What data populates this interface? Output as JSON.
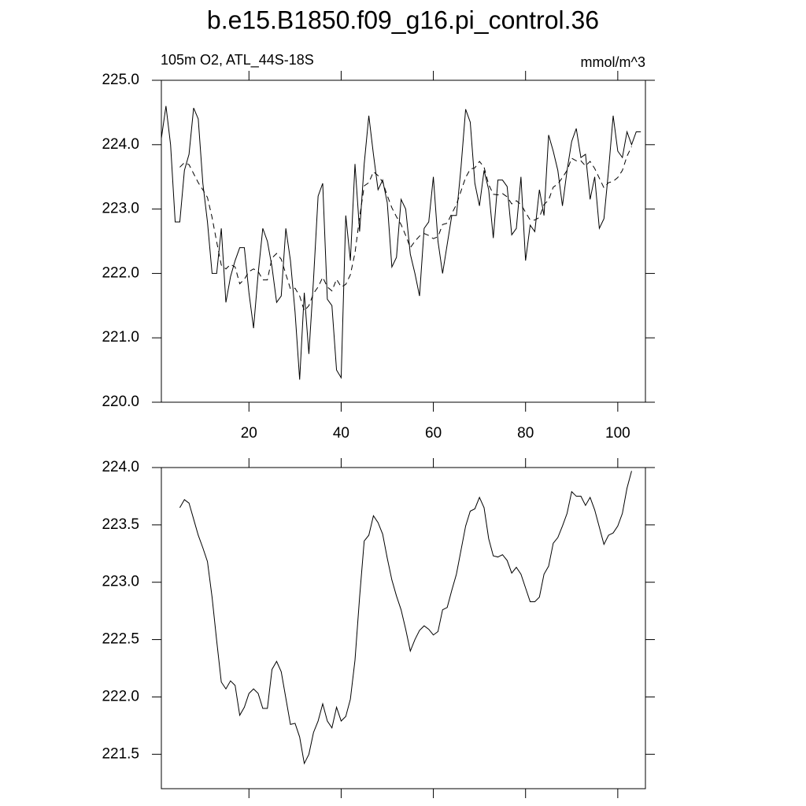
{
  "chart_data": [
    {
      "type": "line",
      "title": "b.e15.B1850.f09_g16.pi_control.36",
      "subtitle_left": "105m O2, ATL_44S-18S",
      "subtitle_right": "mmol/m^3",
      "xlim": [
        1,
        106
      ],
      "xticks": [
        20,
        40,
        60,
        80,
        100
      ],
      "xtick_labels": true,
      "ylim": [
        220,
        225
      ],
      "yticks": [
        {
          "value": 220,
          "label": "220.0"
        },
        {
          "value": 221,
          "label": "221.0"
        },
        {
          "value": 222,
          "label": "222.0"
        },
        {
          "value": 223,
          "label": "223.0"
        },
        {
          "value": 224,
          "label": "224.0"
        },
        {
          "value": 225,
          "label": "225.0"
        }
      ],
      "series": [
        {
          "color": "#000000",
          "style": "solid",
          "x": [
            1,
            2,
            3,
            4,
            5,
            6,
            7,
            8,
            9,
            10,
            11,
            12,
            13,
            14,
            15,
            16,
            17,
            18,
            19,
            20,
            21,
            22,
            23,
            24,
            25,
            26,
            27,
            28,
            29,
            30,
            31,
            32,
            33,
            34,
            35,
            36,
            37,
            38,
            39,
            40,
            41,
            42,
            43,
            44,
            45,
            46,
            47,
            48,
            49,
            50,
            51,
            52,
            53,
            54,
            55,
            56,
            57,
            58,
            59,
            60,
            61,
            62,
            63,
            64,
            65,
            66,
            67,
            68,
            69,
            70,
            71,
            72,
            73,
            74,
            75,
            76,
            77,
            78,
            79,
            80,
            81,
            82,
            83,
            84,
            85,
            86,
            87,
            88,
            89,
            90,
            91,
            92,
            93,
            94,
            95,
            96,
            97,
            98,
            99,
            100,
            101,
            102,
            103,
            104,
            105
          ],
          "values": [
            224.1,
            224.6,
            224.0,
            222.8,
            222.8,
            223.6,
            223.85,
            224.57,
            224.4,
            223.4,
            222.8,
            222.0,
            222.0,
            222.7,
            221.55,
            221.95,
            222.2,
            222.4,
            222.4,
            221.7,
            221.15,
            222.0,
            222.7,
            222.5,
            222.1,
            221.55,
            221.65,
            222.7,
            222.2,
            221.4,
            220.35,
            221.7,
            220.75,
            221.9,
            223.2,
            223.4,
            221.6,
            221.5,
            220.5,
            220.38,
            222.9,
            222.2,
            223.7,
            222.65,
            223.7,
            224.45,
            223.85,
            223.3,
            223.45,
            223.1,
            222.1,
            222.25,
            223.15,
            223.0,
            222.3,
            222.0,
            221.65,
            222.7,
            222.8,
            223.5,
            222.5,
            222.0,
            222.45,
            222.9,
            222.9,
            223.65,
            224.55,
            224.35,
            223.4,
            223.05,
            223.6,
            223.3,
            222.55,
            223.45,
            223.45,
            223.35,
            222.6,
            222.7,
            223.5,
            222.2,
            222.75,
            222.65,
            223.3,
            222.9,
            224.15,
            223.9,
            223.6,
            223.05,
            223.6,
            224.05,
            224.25,
            223.8,
            223.85,
            223.15,
            223.5,
            222.7,
            222.85,
            223.6,
            224.45,
            223.9,
            223.8,
            224.2,
            224.0,
            224.2,
            224.2
          ]
        },
        {
          "color": "#000000",
          "style": "dashed",
          "x": [
            5,
            6,
            7,
            8,
            9,
            10,
            11,
            12,
            13,
            14,
            15,
            16,
            17,
            18,
            19,
            20,
            21,
            22,
            23,
            24,
            25,
            26,
            27,
            28,
            29,
            30,
            31,
            32,
            33,
            34,
            35,
            36,
            37,
            38,
            39,
            40,
            41,
            42,
            43,
            44,
            45,
            46,
            47,
            48,
            49,
            50,
            51,
            52,
            53,
            54,
            55,
            56,
            57,
            58,
            59,
            60,
            61,
            62,
            63,
            64,
            65,
            66,
            67,
            68,
            69,
            70,
            71,
            72,
            73,
            74,
            75,
            76,
            77,
            78,
            79,
            80,
            81,
            82,
            83,
            84,
            85,
            86,
            87,
            88,
            89,
            90,
            91,
            92,
            93,
            94,
            95,
            96,
            97,
            98,
            99,
            100,
            101,
            102,
            103
          ],
          "values": [
            223.65,
            223.72,
            223.69,
            223.55,
            223.41,
            223.3,
            223.18,
            222.87,
            222.49,
            222.13,
            222.07,
            222.14,
            222.1,
            221.84,
            221.91,
            222.03,
            222.07,
            222.03,
            221.9,
            221.9,
            222.24,
            222.31,
            222.22,
            221.99,
            221.76,
            221.77,
            221.65,
            221.42,
            221.5,
            221.69,
            221.79,
            221.94,
            221.79,
            221.73,
            221.91,
            221.79,
            221.83,
            221.98,
            222.32,
            222.87,
            223.36,
            223.41,
            223.58,
            223.52,
            223.42,
            223.21,
            223.02,
            222.88,
            222.76,
            222.59,
            222.4,
            222.5,
            222.58,
            222.62,
            222.59,
            222.54,
            222.57,
            222.76,
            222.78,
            222.93,
            223.07,
            223.28,
            223.49,
            223.62,
            223.64,
            223.74,
            223.65,
            223.38,
            223.23,
            223.22,
            223.24,
            223.19,
            223.08,
            223.13,
            223.07,
            222.95,
            222.83,
            222.83,
            222.87,
            223.07,
            223.14,
            223.34,
            223.39,
            223.49,
            223.6,
            223.79,
            223.75,
            223.75,
            223.67,
            223.74,
            223.63,
            223.48,
            223.33,
            223.41,
            223.43,
            223.49,
            223.6,
            223.82,
            223.97
          ]
        }
      ]
    },
    {
      "type": "line",
      "xlim": [
        1,
        106
      ],
      "xticks": [
        20,
        40,
        60,
        80,
        100
      ],
      "xtick_labels": false,
      "ylim": [
        221.2,
        224
      ],
      "yticks": [
        {
          "value": 221.5,
          "label": "221.5"
        },
        {
          "value": 222,
          "label": "222.0"
        },
        {
          "value": 222.5,
          "label": "222.5"
        },
        {
          "value": 223,
          "label": "223.0"
        },
        {
          "value": 223.5,
          "label": "223.5"
        },
        {
          "value": 224,
          "label": "224.0"
        }
      ],
      "series": [
        {
          "color": "#000000",
          "style": "solid",
          "x": [
            5,
            6,
            7,
            8,
            9,
            10,
            11,
            12,
            13,
            14,
            15,
            16,
            17,
            18,
            19,
            20,
            21,
            22,
            23,
            24,
            25,
            26,
            27,
            28,
            29,
            30,
            31,
            32,
            33,
            34,
            35,
            36,
            37,
            38,
            39,
            40,
            41,
            42,
            43,
            44,
            45,
            46,
            47,
            48,
            49,
            50,
            51,
            52,
            53,
            54,
            55,
            56,
            57,
            58,
            59,
            60,
            61,
            62,
            63,
            64,
            65,
            66,
            67,
            68,
            69,
            70,
            71,
            72,
            73,
            74,
            75,
            76,
            77,
            78,
            79,
            80,
            81,
            82,
            83,
            84,
            85,
            86,
            87,
            88,
            89,
            90,
            91,
            92,
            93,
            94,
            95,
            96,
            97,
            98,
            99,
            100,
            101,
            102,
            103
          ],
          "values": [
            223.65,
            223.72,
            223.69,
            223.55,
            223.41,
            223.3,
            223.18,
            222.87,
            222.49,
            222.13,
            222.07,
            222.14,
            222.1,
            221.84,
            221.91,
            222.03,
            222.07,
            222.03,
            221.9,
            221.9,
            222.24,
            222.31,
            222.22,
            221.99,
            221.76,
            221.77,
            221.65,
            221.42,
            221.5,
            221.69,
            221.79,
            221.94,
            221.79,
            221.73,
            221.91,
            221.79,
            221.83,
            221.98,
            222.32,
            222.87,
            223.36,
            223.41,
            223.58,
            223.52,
            223.42,
            223.21,
            223.02,
            222.88,
            222.76,
            222.59,
            222.4,
            222.5,
            222.58,
            222.62,
            222.59,
            222.54,
            222.57,
            222.76,
            222.78,
            222.93,
            223.07,
            223.28,
            223.49,
            223.62,
            223.64,
            223.74,
            223.65,
            223.38,
            223.23,
            223.22,
            223.24,
            223.19,
            223.08,
            223.13,
            223.07,
            222.95,
            222.83,
            222.83,
            222.87,
            223.07,
            223.14,
            223.34,
            223.39,
            223.49,
            223.6,
            223.79,
            223.75,
            223.75,
            223.67,
            223.74,
            223.63,
            223.48,
            223.33,
            223.41,
            223.43,
            223.49,
            223.6,
            223.82,
            223.97
          ]
        }
      ]
    }
  ]
}
